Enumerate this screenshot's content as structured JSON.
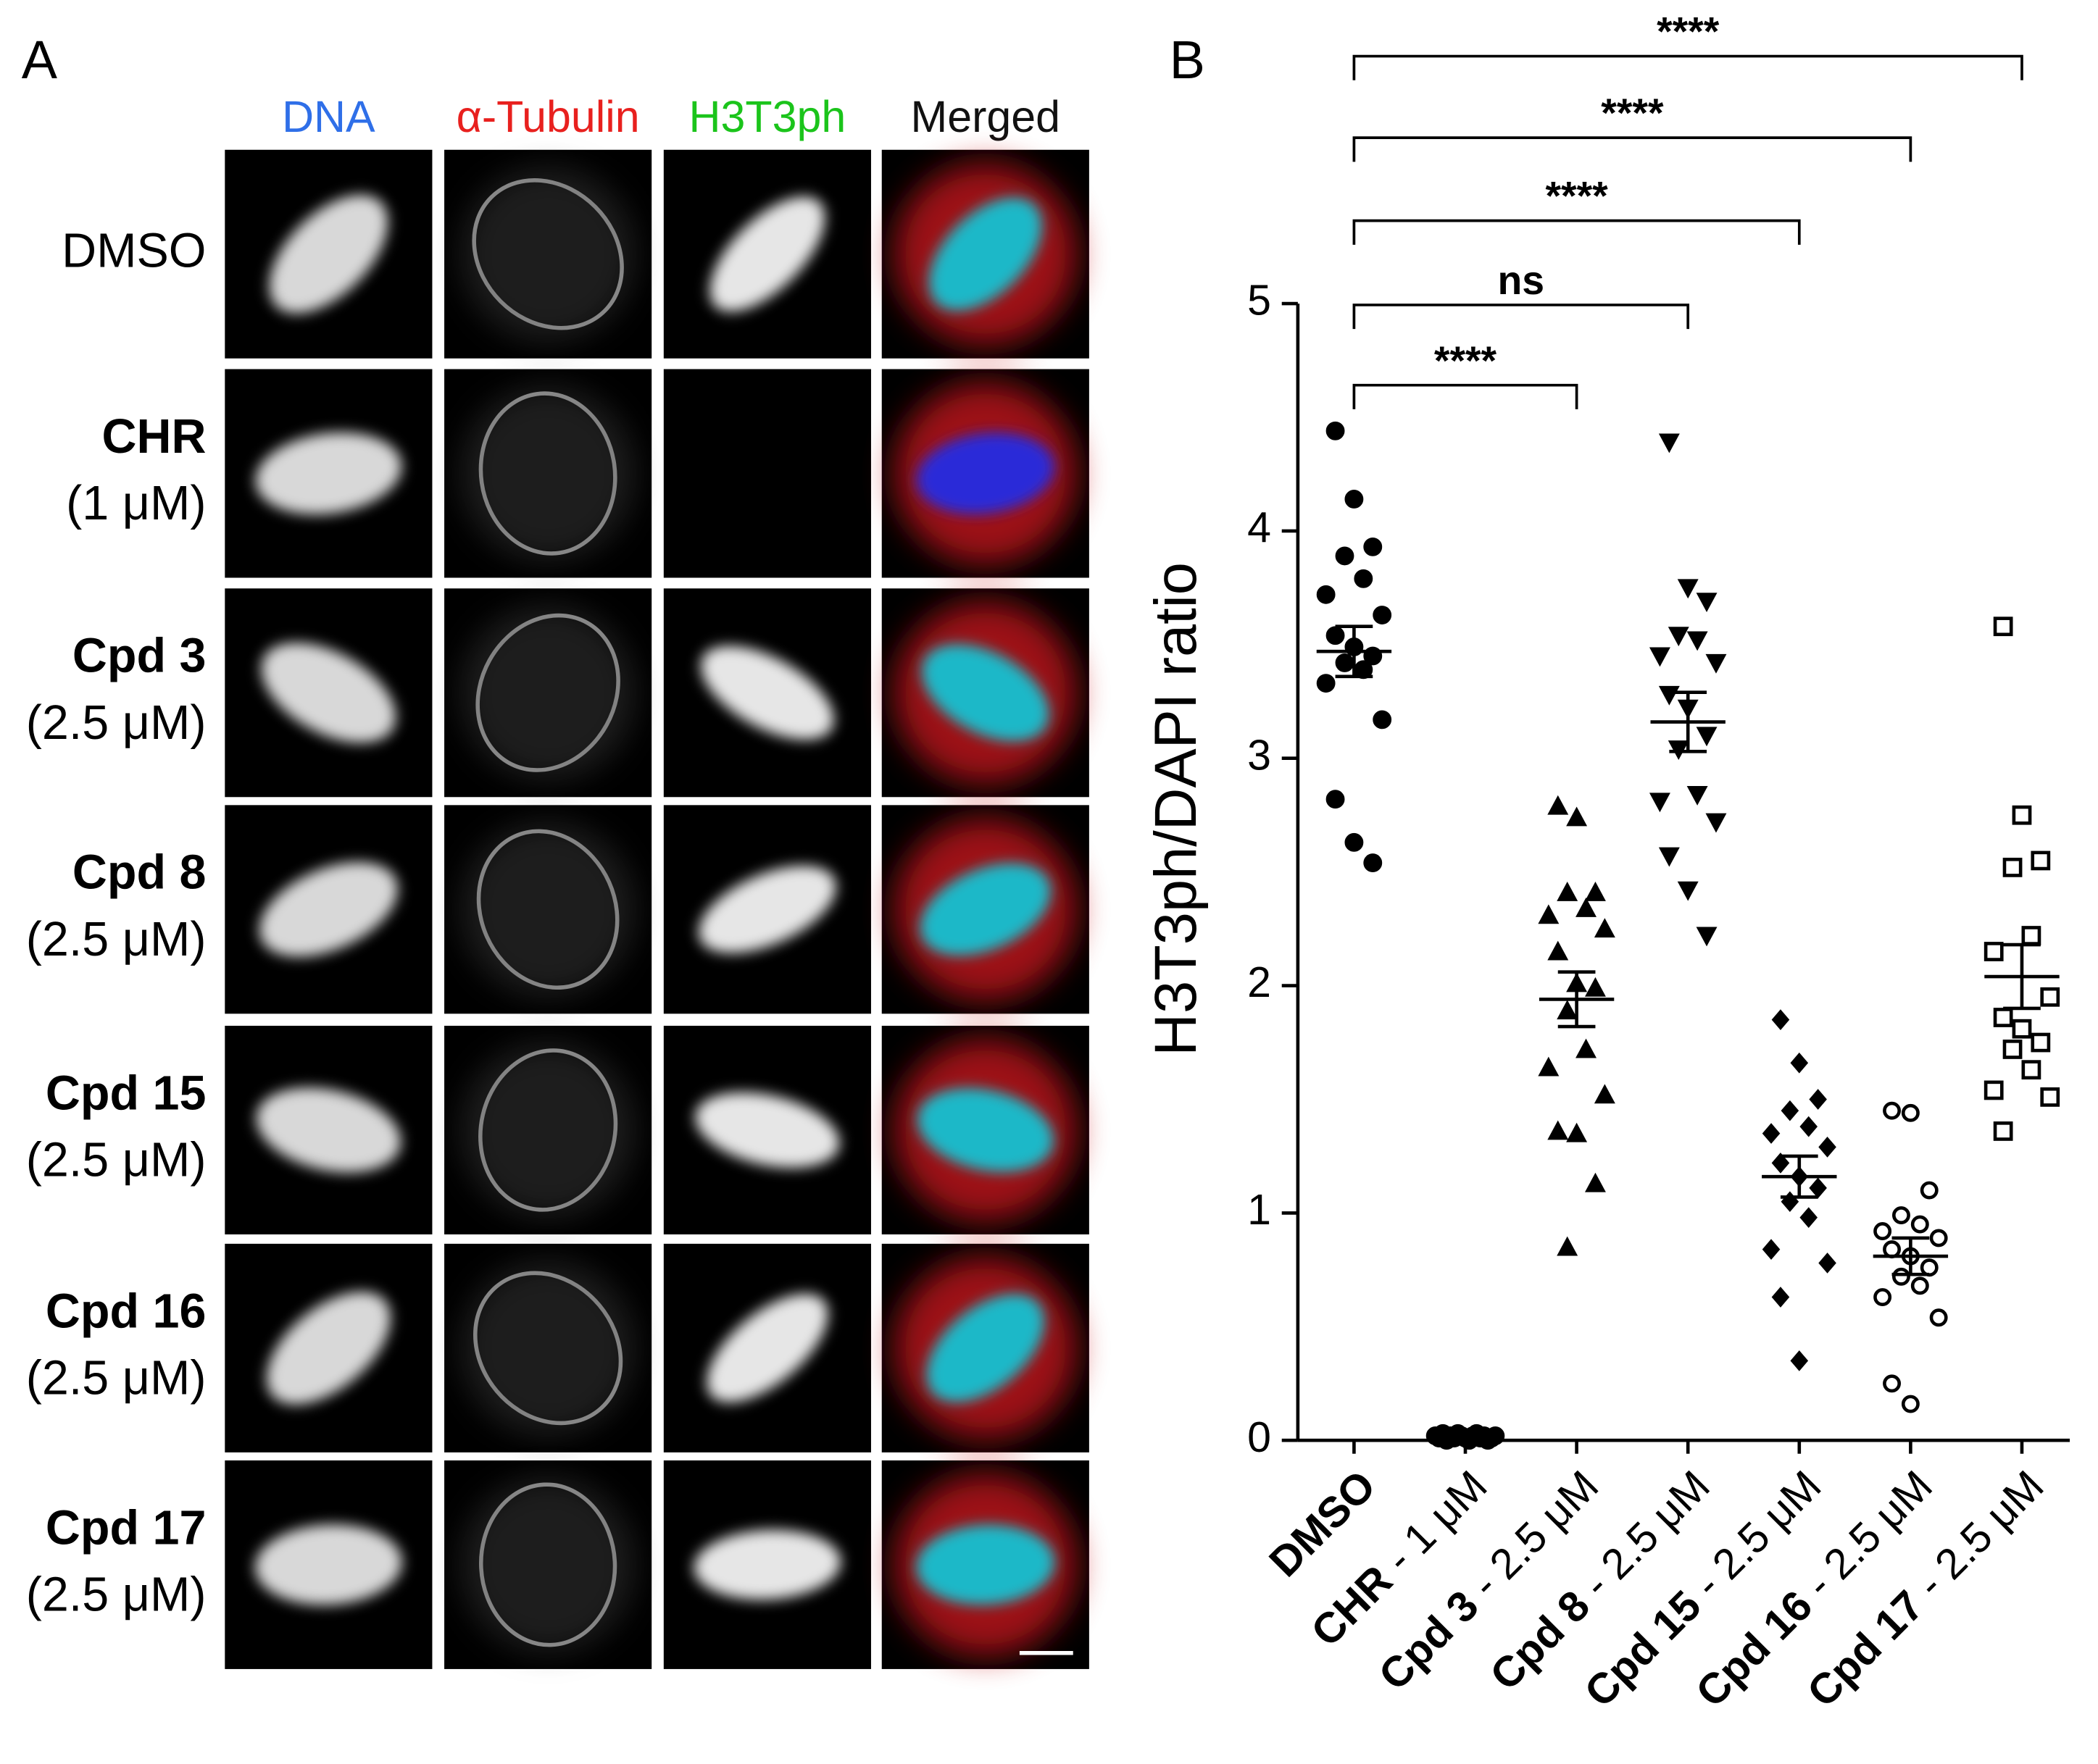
{
  "panel_a": {
    "label": "A",
    "columns": [
      {
        "text": "DNA",
        "color": "#2f6fe8"
      },
      {
        "text": "α-Tubulin",
        "color": "#e8201e"
      },
      {
        "text": "H3T3ph",
        "color": "#1bc41b"
      },
      {
        "text": "Merged",
        "color": "#111111"
      }
    ],
    "rows": [
      {
        "name": "DMSO"
      },
      {
        "name": "CHR",
        "conc": "(1 μM)"
      },
      {
        "name": "Cpd 3",
        "conc": "(2.5 μM)"
      },
      {
        "name": "Cpd 8",
        "conc": "(2.5 μM)"
      },
      {
        "name": "Cpd 15",
        "conc": "(2.5 μM)"
      },
      {
        "name": "Cpd 16",
        "conc": "(2.5 μM)"
      },
      {
        "name": "Cpd 17",
        "conc": "(2.5 μM)"
      }
    ]
  },
  "chart_data": {
    "type": "strip",
    "panel_label": "B",
    "y_label": "H3T3ph/DAPI ratio",
    "categories": [
      "DMSO",
      "CHR - 1 μM",
      "Cpd 3 - 2.5 μM",
      "Cpd 8 - 2.5 μM",
      "Cpd 15 - 2.5 μM",
      "Cpd 16 - 2.5 μM",
      "Cpd 17 - 2.5 μM"
    ],
    "ylim": [
      0,
      5
    ],
    "yticks": [
      0,
      1,
      2,
      3,
      4,
      5
    ],
    "series": [
      {
        "marker": "circle",
        "color": "#000000",
        "values": [
          4.44,
          4.14,
          3.93,
          3.89,
          3.79,
          3.72,
          3.63,
          3.54,
          3.49,
          3.45,
          3.42,
          3.39,
          3.33,
          3.17,
          2.82,
          2.63,
          2.54
        ],
        "mean": 3.47,
        "sem": 0.11
      },
      {
        "marker": "circle",
        "color": "#000000",
        "values": [
          0.02,
          0.01,
          0.03,
          0.0,
          0.02,
          0.01,
          0.03,
          0.02,
          0.01,
          0.0,
          0.02,
          0.03,
          0.01,
          0.02,
          0.0,
          0.01,
          0.02
        ],
        "mean": 0.015,
        "sem": 0.003
      },
      {
        "marker": "triangle",
        "color": "#000000",
        "values": [
          2.79,
          2.74,
          2.41,
          2.41,
          2.34,
          2.31,
          2.25,
          2.15,
          2.01,
          1.99,
          1.89,
          1.72,
          1.64,
          1.52,
          1.36,
          1.35,
          1.13,
          0.85
        ],
        "mean": 1.94,
        "sem": 0.12
      },
      {
        "marker": "triangle-down",
        "color": "#000000",
        "values": [
          4.39,
          3.75,
          3.69,
          3.54,
          3.52,
          3.45,
          3.42,
          3.28,
          3.22,
          3.1,
          3.04,
          2.84,
          2.81,
          2.72,
          2.57,
          2.42,
          2.22
        ],
        "mean": 3.16,
        "sem": 0.13
      },
      {
        "marker": "diamond",
        "color": "#000000",
        "values": [
          1.85,
          1.66,
          1.5,
          1.45,
          1.38,
          1.35,
          1.29,
          1.22,
          1.16,
          1.11,
          1.05,
          0.98,
          0.84,
          0.78,
          0.63,
          0.35
        ],
        "mean": 1.16,
        "sem": 0.09
      },
      {
        "marker": "circle-open",
        "color": "#000000",
        "values": [
          1.45,
          1.44,
          1.1,
          0.99,
          0.95,
          0.92,
          0.89,
          0.84,
          0.81,
          0.76,
          0.72,
          0.68,
          0.63,
          0.54,
          0.25,
          0.16
        ],
        "mean": 0.81,
        "sem": 0.08
      },
      {
        "marker": "square-open",
        "color": "#000000",
        "values": [
          3.58,
          2.75,
          2.55,
          2.52,
          2.22,
          2.15,
          1.95,
          1.86,
          1.81,
          1.75,
          1.72,
          1.63,
          1.54,
          1.51,
          1.36
        ],
        "mean": 2.04,
        "sem": 0.14
      }
    ],
    "comparisons": [
      {
        "from": 0,
        "to": 2,
        "label": "****"
      },
      {
        "from": 0,
        "to": 3,
        "label": "ns"
      },
      {
        "from": 0,
        "to": 4,
        "label": "****"
      },
      {
        "from": 0,
        "to": 5,
        "label": "****"
      },
      {
        "from": 0,
        "to": 6,
        "label": "****"
      }
    ]
  }
}
